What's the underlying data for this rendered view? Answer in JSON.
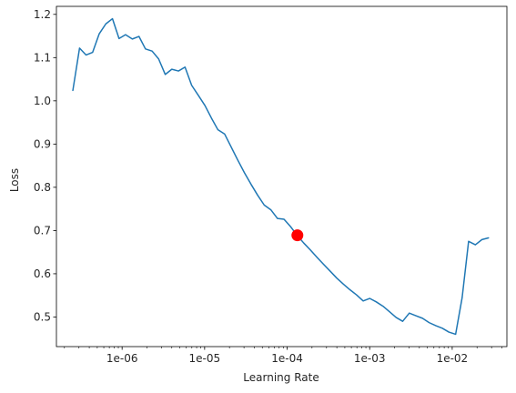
{
  "chart_data": {
    "type": "line",
    "xlabel": "Learning Rate",
    "ylabel": "Loss",
    "xscale": "log",
    "xlim": [
      1.6e-07,
      0.046
    ],
    "ylim": [
      0.4315,
      1.2185
    ],
    "xticks": [
      {
        "value": 1e-06,
        "label": "1e-06"
      },
      {
        "value": 1e-05,
        "label": "1e-05"
      },
      {
        "value": 0.0001,
        "label": "1e-04"
      },
      {
        "value": 0.001,
        "label": "1e-03"
      },
      {
        "value": 0.01,
        "label": "1e-02"
      }
    ],
    "yticks": [
      {
        "value": 0.5,
        "label": "0.5"
      },
      {
        "value": 0.6,
        "label": "0.6"
      },
      {
        "value": 0.7,
        "label": "0.7"
      },
      {
        "value": 0.8,
        "label": "0.8"
      },
      {
        "value": 0.9,
        "label": "0.9"
      },
      {
        "value": 1.0,
        "label": "1.0"
      },
      {
        "value": 1.1,
        "label": "1.1"
      },
      {
        "value": 1.2,
        "label": "1.2"
      }
    ],
    "grid": false,
    "series": [
      {
        "color": "#1f77b4",
        "x": [
          2.53e-07,
          3.05e-07,
          3.66e-07,
          4.39e-07,
          5.28e-07,
          6.35e-07,
          7.64e-07,
          9.18e-07,
          1.1e-06,
          1.33e-06,
          1.6e-06,
          1.92e-06,
          2.31e-06,
          2.77e-06,
          3.33e-06,
          4e-06,
          4.82e-06,
          5.79e-06,
          6.96e-06,
          8.37e-06,
          1.01e-05,
          1.21e-05,
          1.45e-05,
          1.75e-05,
          2.1e-05,
          2.52e-05,
          3.03e-05,
          3.65e-05,
          4.38e-05,
          5.27e-05,
          6.34e-05,
          7.62e-05,
          9.16e-05,
          0.00011,
          0.000132,
          0.000159,
          0.000191,
          0.00023,
          0.000276,
          0.000332,
          0.000399,
          0.00048,
          0.000577,
          0.000694,
          0.000834,
          0.001,
          0.0012,
          0.00145,
          0.00174,
          0.00209,
          0.00251,
          0.00302,
          0.00363,
          0.00437,
          0.00525,
          0.00631,
          0.00759,
          0.00912,
          0.011,
          0.0132,
          0.0158,
          0.0191,
          0.0229,
          0.0275
        ],
        "y": [
          1.024,
          1.122,
          1.106,
          1.112,
          1.155,
          1.178,
          1.19,
          1.144,
          1.153,
          1.143,
          1.149,
          1.12,
          1.115,
          1.097,
          1.061,
          1.073,
          1.069,
          1.078,
          1.036,
          1.013,
          0.989,
          0.96,
          0.933,
          0.923,
          0.893,
          0.863,
          0.834,
          0.807,
          0.782,
          0.759,
          0.748,
          0.728,
          0.726,
          0.709,
          0.689,
          0.671,
          0.655,
          0.638,
          0.622,
          0.606,
          0.59,
          0.576,
          0.563,
          0.551,
          0.537,
          0.543,
          0.535,
          0.525,
          0.512,
          0.499,
          0.49,
          0.509,
          0.503,
          0.497,
          0.487,
          0.48,
          0.474,
          0.465,
          0.46,
          0.545,
          0.675,
          0.667,
          0.679,
          0.683
        ]
      }
    ],
    "marker": {
      "x": 0.000133,
      "y": 0.689,
      "color": "#ff0000"
    }
  }
}
